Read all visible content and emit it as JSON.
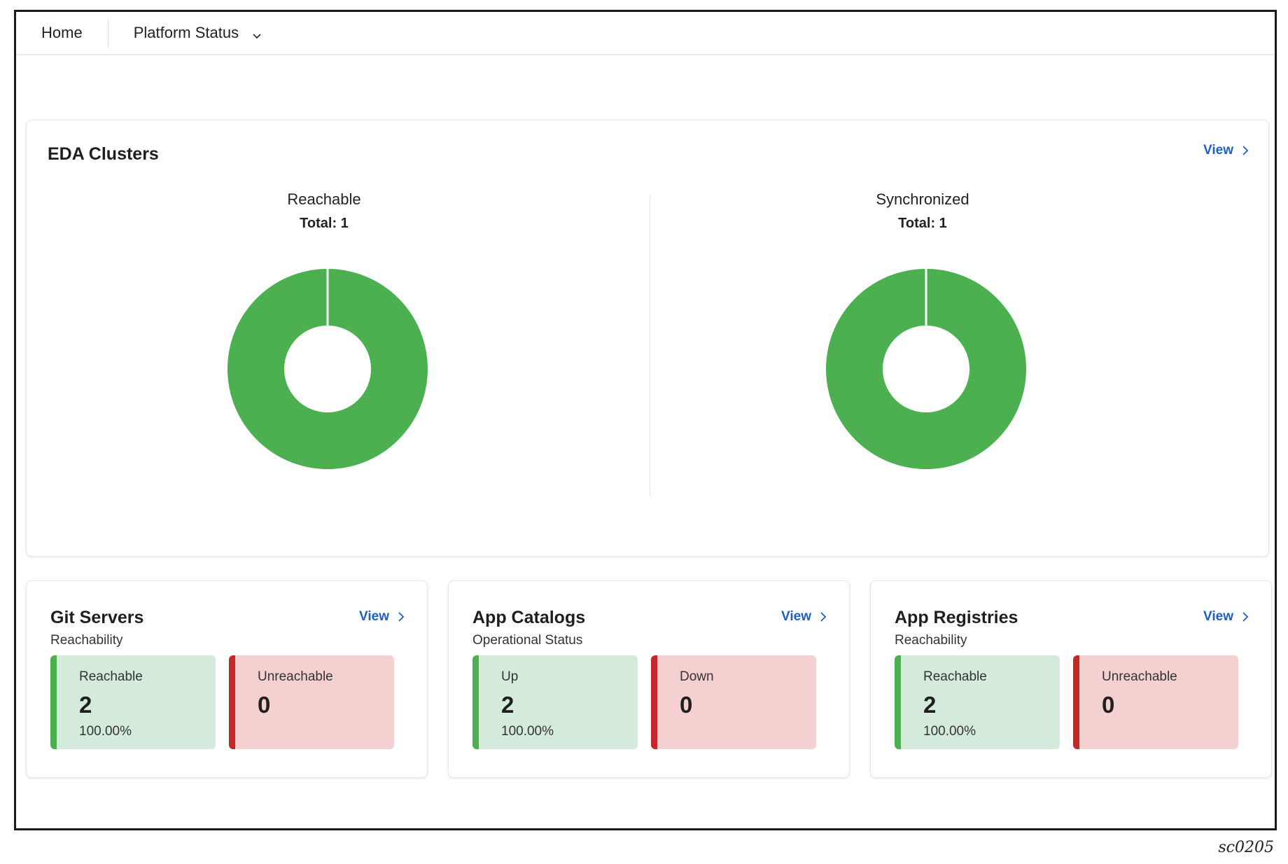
{
  "nav": {
    "home": "Home",
    "platform": "Platform Status",
    "chevron_icon": "chevron-down-icon"
  },
  "colors": {
    "good": "#4caf50",
    "bad": "#c62828",
    "link": "#1f5fbf"
  },
  "eda": {
    "title": "EDA Clusters",
    "view": "View",
    "charts": [
      {
        "label": "Reachable",
        "total": "Total: 1",
        "value": 1,
        "max": 1
      },
      {
        "label": "Synchronized",
        "total": "Total: 1",
        "value": 1,
        "max": 1
      }
    ]
  },
  "cards": [
    {
      "title": "Git Servers",
      "subtitle": "Reachability",
      "view": "View",
      "good": {
        "label": "Reachable",
        "value": "2",
        "pct": "100.00%"
      },
      "bad": {
        "label": "Unreachable",
        "value": "0"
      }
    },
    {
      "title": "App Catalogs",
      "subtitle": "Operational Status",
      "view": "View",
      "good": {
        "label": "Up",
        "value": "2",
        "pct": "100.00%"
      },
      "bad": {
        "label": "Down",
        "value": "0"
      }
    },
    {
      "title": "App Registries",
      "subtitle": "Reachability",
      "view": "View",
      "good": {
        "label": "Reachable",
        "value": "2",
        "pct": "100.00%"
      },
      "bad": {
        "label": "Unreachable",
        "value": "0"
      }
    }
  ],
  "caption": "sc0205"
}
